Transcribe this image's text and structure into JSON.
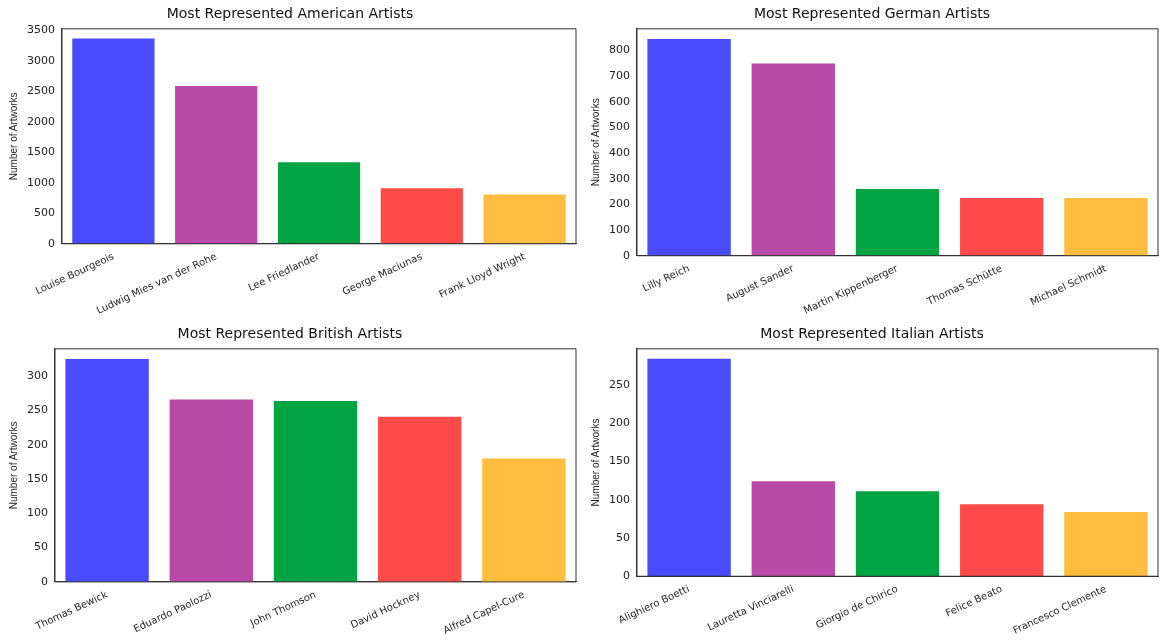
{
  "chart_data": [
    {
      "type": "bar",
      "title": "Most Represented American Artists",
      "ylabel": "Number of Artworks",
      "categories": [
        "Louise Bourgeois",
        "Ludwig Mies van der Rohe",
        "Lee Friedlander",
        "George Maciunas",
        "Frank Lloyd Wright"
      ],
      "values": [
        3370,
        2590,
        1340,
        910,
        810
      ],
      "colors": [
        "#4a4aff",
        "#b94aa8",
        "#00a443",
        "#ff4a4a",
        "#ffbd40"
      ],
      "ylim": [
        0,
        3530
      ],
      "yticks": [
        0,
        500,
        1000,
        1500,
        2000,
        2500,
        3000,
        3500
      ],
      "grid": false,
      "legend": false
    },
    {
      "type": "bar",
      "title": "Most Represented German Artists",
      "ylabel": "Number of Artworks",
      "categories": [
        "Lilly Reich",
        "August Sander",
        "Martin Kippenberger",
        "Thomas Schütte",
        "Michael Schmidt"
      ],
      "values": [
        845,
        750,
        260,
        225,
        225
      ],
      "colors": [
        "#4a4aff",
        "#b94aa8",
        "#00a443",
        "#ff4a4a",
        "#ffbd40"
      ],
      "ylim": [
        0,
        885
      ],
      "yticks": [
        0,
        100,
        200,
        300,
        400,
        500,
        600,
        700,
        800
      ],
      "grid": false,
      "legend": false
    },
    {
      "type": "bar",
      "title": "Most Represented British Artists",
      "ylabel": "Number of Artworks",
      "categories": [
        "Thomas Bewick",
        "Eduardo Paolozzi",
        "John Thomson",
        "David Hockney",
        "Alfred Capel-Cure"
      ],
      "values": [
        325,
        266,
        264,
        241,
        180
      ],
      "colors": [
        "#4a4aff",
        "#b94aa8",
        "#00a443",
        "#ff4a4a",
        "#ffbd40"
      ],
      "ylim": [
        0,
        340
      ],
      "yticks": [
        0,
        50,
        100,
        150,
        200,
        250,
        300
      ],
      "grid": false,
      "legend": false
    },
    {
      "type": "bar",
      "title": "Most Represented Italian Artists",
      "ylabel": "Number of Artworks",
      "categories": [
        "Alighiero Boetti",
        "Lauretta Vinciarelli",
        "Giorgio de Chirico",
        "Felice Beato",
        "Francesco Clemente"
      ],
      "values": [
        284,
        124,
        111,
        94,
        84
      ],
      "colors": [
        "#4a4aff",
        "#b94aa8",
        "#00a443",
        "#ff4a4a",
        "#ffbd40"
      ],
      "ylim": [
        0,
        297
      ],
      "yticks": [
        0,
        50,
        100,
        150,
        200,
        250
      ],
      "grid": false,
      "legend": false
    }
  ]
}
